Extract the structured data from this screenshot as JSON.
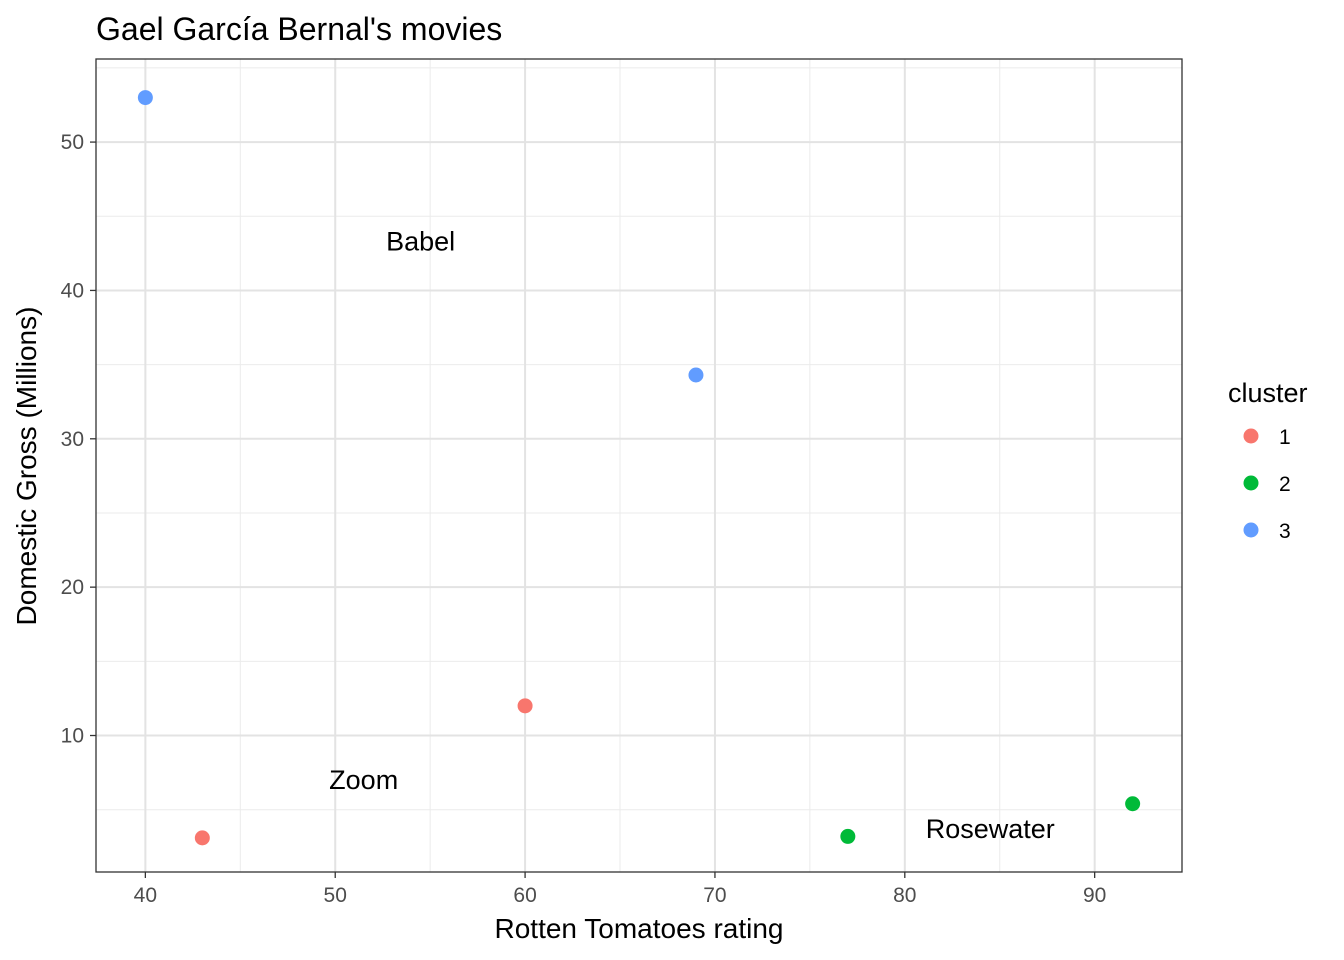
{
  "chart_data": {
    "type": "scatter",
    "title": "Gael García Bernal's movies",
    "xlabel": "Rotten Tomatoes rating",
    "ylabel": "Domestic Gross (Millions)",
    "xlim": [
      37.4,
      94.6
    ],
    "ylim": [
      0.8,
      55.6
    ],
    "x_ticks": [
      "40",
      "50",
      "60",
      "70",
      "80",
      "90"
    ],
    "y_ticks": [
      "10",
      "20",
      "30",
      "40",
      "50"
    ],
    "grid": true,
    "legend": {
      "title": "cluster",
      "position": "right",
      "items": [
        {
          "label": "1",
          "color": "#F8766D"
        },
        {
          "label": "2",
          "color": "#00BA38"
        },
        {
          "label": "3",
          "color": "#619CFF"
        }
      ]
    },
    "series": [
      {
        "name": "1",
        "color": "#F8766D",
        "points": [
          {
            "x": 43,
            "y": 3.1
          },
          {
            "x": 60,
            "y": 12.0
          }
        ]
      },
      {
        "name": "2",
        "color": "#00BA38",
        "points": [
          {
            "x": 77,
            "y": 3.2
          },
          {
            "x": 92,
            "y": 5.4
          }
        ]
      },
      {
        "name": "3",
        "color": "#619CFF",
        "points": [
          {
            "x": 40,
            "y": 53.0
          },
          {
            "x": 69,
            "y": 34.3
          }
        ]
      }
    ],
    "annotations": [
      {
        "text": "Babel",
        "x": 54.5,
        "y": 43.3
      },
      {
        "text": "Zoom",
        "x": 51.5,
        "y": 7.0
      },
      {
        "text": "Rosewater",
        "x": 84.5,
        "y": 3.7
      }
    ]
  }
}
